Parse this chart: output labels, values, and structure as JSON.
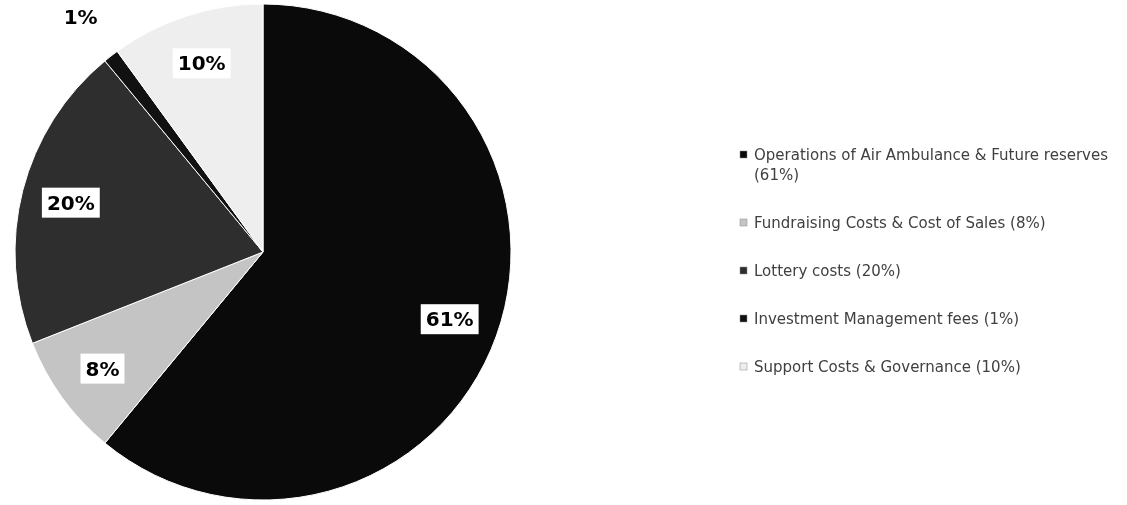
{
  "chart_data": {
    "type": "pie",
    "categories": [
      "Operations of Air Ambulance & Future reserves (61%)",
      "Fundraising Costs & Cost of Sales (8%)",
      "Lottery costs (20%)",
      "Investment Management fees (1%)",
      "Support Costs & Governance (10%)"
    ],
    "values": [
      61,
      8,
      20,
      1,
      10
    ],
    "colors": [
      "#0a0a0a",
      "#c4c4c4",
      "#2e2e2e",
      "#111111",
      "#eeeeee"
    ],
    "value_labels": [
      "61%",
      "8%",
      "20%",
      "1%",
      "10%"
    ],
    "legend": "right"
  }
}
